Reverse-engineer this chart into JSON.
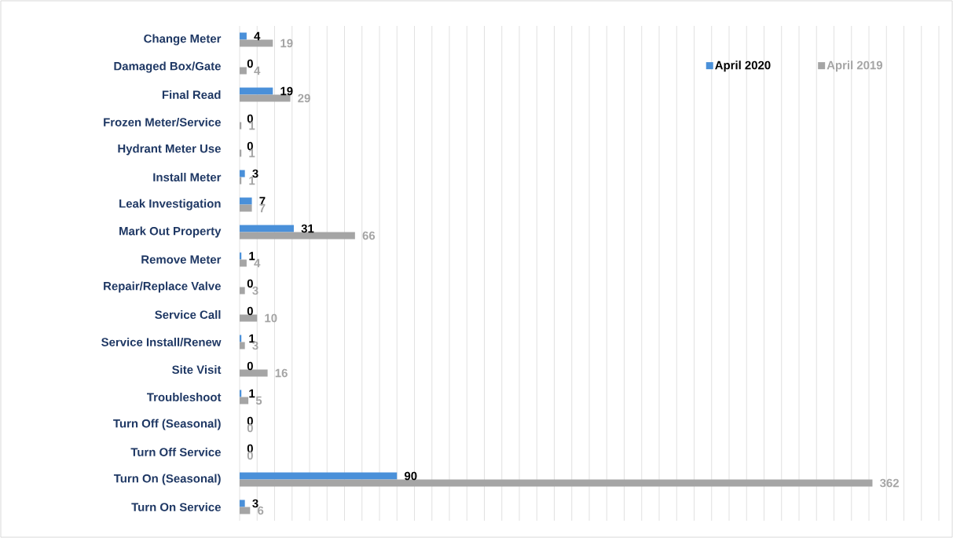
{
  "chart_data": {
    "type": "bar",
    "orientation": "horizontal",
    "categories": [
      "Change Meter",
      "Damaged Box/Gate",
      "Final Read",
      "Frozen Meter/Service",
      "Hydrant Meter Use",
      "Install Meter",
      "Leak Investigation",
      "Mark Out Property",
      "Remove Meter",
      "Repair/Replace Valve",
      "Service Call",
      "Service Install/Renew",
      "Site Visit",
      "Troubleshoot",
      "Turn Off (Seasonal)",
      "Turn Off Service",
      "Turn On (Seasonal)",
      "Turn On Service"
    ],
    "series": [
      {
        "name": "April 2020",
        "color": "#4a90d9",
        "values": [
          4,
          0,
          19,
          0,
          0,
          3,
          7,
          31,
          1,
          0,
          0,
          1,
          0,
          1,
          0,
          0,
          90,
          3
        ]
      },
      {
        "name": "April 2019",
        "color": "#a5a5a5",
        "values": [
          19,
          4,
          29,
          1,
          1,
          1,
          7,
          66,
          4,
          3,
          10,
          3,
          16,
          5,
          0,
          0,
          362,
          6
        ]
      }
    ],
    "xlim": [
      0,
      400
    ],
    "xticks": [
      {
        "value": 0,
        "label": null
      },
      {
        "value": 10,
        "label": null
      },
      {
        "value": 20,
        "label": null
      },
      {
        "value": 30,
        "label": null
      },
      {
        "value": 40,
        "label": null
      },
      {
        "value": 50,
        "label": null
      },
      {
        "value": 60,
        "label": null
      },
      {
        "value": 70,
        "label": null
      },
      {
        "value": 80,
        "label": null
      },
      {
        "value": 90,
        "label": null
      },
      {
        "value": 100,
        "label": null
      },
      {
        "value": 110,
        "label": null
      },
      {
        "value": 120,
        "label": null
      },
      {
        "value": 130,
        "label": null
      },
      {
        "value": 140,
        "label": null
      },
      {
        "value": 150,
        "label": null
      },
      {
        "value": 160,
        "label": null
      },
      {
        "value": 170,
        "label": null
      },
      {
        "value": 180,
        "label": null
      },
      {
        "value": 190,
        "label": null
      },
      {
        "value": 200,
        "label": null
      },
      {
        "value": 210,
        "label": null
      },
      {
        "value": 220,
        "label": null
      },
      {
        "value": 230,
        "label": null
      },
      {
        "value": 240,
        "label": null
      },
      {
        "value": 250,
        "label": null
      },
      {
        "value": 260,
        "label": null
      },
      {
        "value": 270,
        "label": null
      },
      {
        "value": 280,
        "label": null
      },
      {
        "value": 290,
        "label": null
      },
      {
        "value": 300,
        "label": null
      },
      {
        "value": 310,
        "label": null
      },
      {
        "value": 320,
        "label": null
      },
      {
        "value": 330,
        "label": null
      },
      {
        "value": 340,
        "label": null
      },
      {
        "value": 350,
        "label": null
      },
      {
        "value": 360,
        "label": null
      },
      {
        "value": 370,
        "label": null
      },
      {
        "value": 380,
        "label": null
      },
      {
        "value": 390,
        "label": null
      },
      {
        "value": 400,
        "label": null
      }
    ],
    "tick_labels": "y",
    "grid": "x",
    "legend": "top right",
    "data_labels": true
  }
}
